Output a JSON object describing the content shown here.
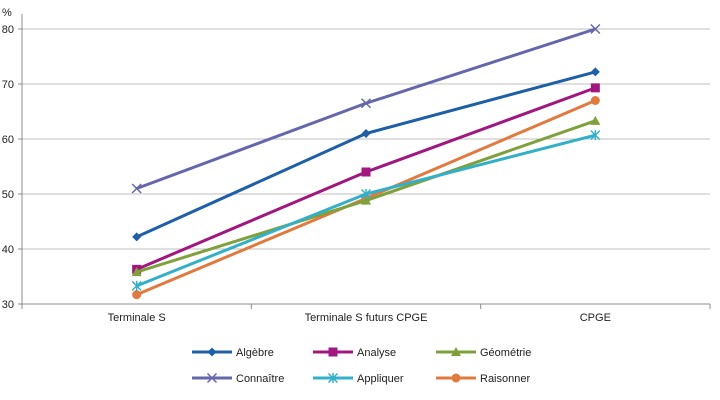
{
  "chart_data": {
    "type": "line",
    "ylabel": "%",
    "ylim": [
      30,
      82
    ],
    "yticks": [
      30,
      40,
      50,
      60,
      70,
      80
    ],
    "categories": [
      "Terminale S",
      "Terminale S futurs CPGE",
      "CPGE"
    ],
    "grid": "horizontal",
    "legend_position": "bottom",
    "series": [
      {
        "name": "Connaître",
        "values": [
          51,
          66.5,
          80
        ],
        "color": "#6667AB",
        "marker": "x"
      },
      {
        "name": "Algèbre",
        "values": [
          42.2,
          61,
          72.2
        ],
        "color": "#1F5FA6",
        "marker": "diamond"
      },
      {
        "name": "Analyse",
        "values": [
          36.3,
          54,
          69.3
        ],
        "color": "#A0177F",
        "marker": "square"
      },
      {
        "name": "Raisonner",
        "values": [
          31.7,
          49.2,
          67
        ],
        "color": "#E07A3F",
        "marker": "circle"
      },
      {
        "name": "Géométrie",
        "values": [
          35.8,
          48.8,
          63.3
        ],
        "color": "#7FA03A",
        "marker": "triangle"
      },
      {
        "name": "Appliquer",
        "values": [
          33.3,
          50,
          60.7
        ],
        "color": "#33B0C8",
        "marker": "star"
      }
    ],
    "legend_order": [
      "Algèbre",
      "Analyse",
      "Géométrie",
      "Connaître",
      "Appliquer",
      "Raisonner"
    ]
  }
}
